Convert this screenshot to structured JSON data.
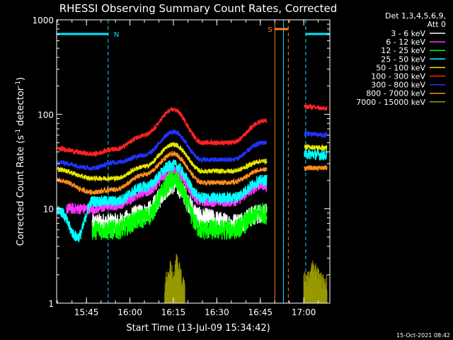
{
  "chart_data": {
    "type": "line",
    "title": "RHESSI Observing Summary Count Rates, Corrected",
    "xlabel": "Start Time (13-Jul-09 15:34:42)",
    "ylabel_parts": [
      "Corrected Count Rate (s",
      "-1",
      " detector",
      "-1",
      ")"
    ],
    "yscale": "log",
    "ylim": [
      1,
      1000
    ],
    "xlim": [
      "15:34:42",
      "17:09:00"
    ],
    "x_ticks": [
      "15:45",
      "16:00",
      "16:15",
      "16:30",
      "16:45",
      "17:00"
    ],
    "y_ticks": [
      "1",
      "10",
      "100",
      "1000"
    ],
    "legend_header": [
      "Det 1,3,4,5,6,9,",
      "Att 0"
    ],
    "legend_position": "top-right",
    "timestamp": "15-Oct-2021 08:42",
    "flags": [
      {
        "label": "N",
        "color": "#00e5ff",
        "kind": "night",
        "bars": [
          [
            "15:34:42",
            "15:52:30"
          ],
          [
            "17:00:40",
            "17:09:00"
          ]
        ],
        "lines": [
          "15:52:30",
          "16:53:00",
          "17:00:40"
        ]
      },
      {
        "label": "S",
        "color": "#ff7f1e",
        "kind": "saa",
        "bars": [
          [
            "16:50:00",
            "16:54:40"
          ]
        ],
        "lines": [
          "16:50:00",
          "16:54:40"
        ]
      }
    ],
    "data_gaps": [
      [
        "16:47:15",
        "17:00:10"
      ]
    ],
    "series": [
      {
        "name": "3 - 6 keV",
        "color": "#ffffff",
        "style": "low",
        "x": [
          "15:47",
          "15:55",
          "16:05",
          "16:15",
          "16:25",
          "16:35",
          "16:46",
          "17:01",
          "17:08"
        ],
        "values": [
          7,
          7,
          9,
          18,
          8,
          7,
          9,
          0,
          0
        ]
      },
      {
        "name": "6 - 12 keV",
        "color": "#ff33ff",
        "style": "mid",
        "x": [
          "15:38",
          "15:47",
          "15:55",
          "16:05",
          "16:15",
          "16:25",
          "16:35",
          "16:46",
          "17:01",
          "17:08"
        ],
        "values": [
          10,
          10,
          11,
          15,
          25,
          12,
          12,
          18,
          0,
          0
        ]
      },
      {
        "name": "12 - 25 keV",
        "color": "#00ff00",
        "style": "low",
        "x": [
          "15:47",
          "15:55",
          "16:05",
          "16:15",
          "16:25",
          "16:35",
          "16:46",
          "17:01",
          "17:08"
        ],
        "values": [
          6,
          6,
          8,
          20,
          6,
          6,
          9,
          0,
          0
        ]
      },
      {
        "name": "25 - 50 keV",
        "color": "#00ffff",
        "style": "mid",
        "x": [
          "15:35",
          "15:42",
          "15:47",
          "15:55",
          "16:05",
          "16:15",
          "16:25",
          "16:35",
          "16:46",
          "17:01",
          "17:08"
        ],
        "values": [
          10,
          5,
          12,
          12,
          17,
          29,
          13,
          13,
          20,
          38,
          37
        ]
      },
      {
        "name": "50 - 100 keV",
        "color": "#e6e600",
        "style": "high",
        "x": [
          "15:35",
          "15:47",
          "15:55",
          "16:05",
          "16:15",
          "16:25",
          "16:35",
          "16:46",
          "17:01",
          "17:08"
        ],
        "values": [
          26,
          21,
          21,
          28,
          48,
          25,
          25,
          32,
          45,
          44
        ]
      },
      {
        "name": "100 - 300 keV",
        "color": "#ff2222",
        "style": "high",
        "x": [
          "15:35",
          "15:47",
          "15:55",
          "16:05",
          "16:15",
          "16:25",
          "16:35",
          "16:46",
          "17:01",
          "17:08"
        ],
        "values": [
          43,
          38,
          43,
          60,
          112,
          50,
          50,
          85,
          120,
          115
        ]
      },
      {
        "name": "300 - 800 keV",
        "color": "#2233ff",
        "style": "high",
        "x": [
          "15:35",
          "15:47",
          "15:55",
          "16:05",
          "16:15",
          "16:25",
          "16:35",
          "16:46",
          "17:01",
          "17:08"
        ],
        "values": [
          31,
          27,
          31,
          37,
          65,
          33,
          33,
          50,
          62,
          60
        ]
      },
      {
        "name": "800 - 7000 keV",
        "color": "#ff8c1a",
        "style": "high",
        "x": [
          "15:35",
          "15:47",
          "15:55",
          "16:05",
          "16:15",
          "16:25",
          "16:35",
          "16:46",
          "17:01",
          "17:08"
        ],
        "values": [
          20,
          15,
          16,
          23,
          38,
          19,
          19,
          26,
          27,
          27
        ]
      },
      {
        "name": "7000 - 15000 keV",
        "color": "#999900",
        "style": "burst",
        "x": [
          "16:12",
          "16:13",
          "16:14",
          "16:15",
          "16:16",
          "16:17",
          "16:18",
          "16:19",
          "17:01",
          "17:03",
          "17:05",
          "17:07"
        ],
        "values": [
          1.5,
          2.1,
          2.6,
          2.0,
          2.8,
          2.4,
          1.8,
          1.5,
          1.8,
          2.4,
          2.1,
          1.7
        ]
      }
    ]
  }
}
